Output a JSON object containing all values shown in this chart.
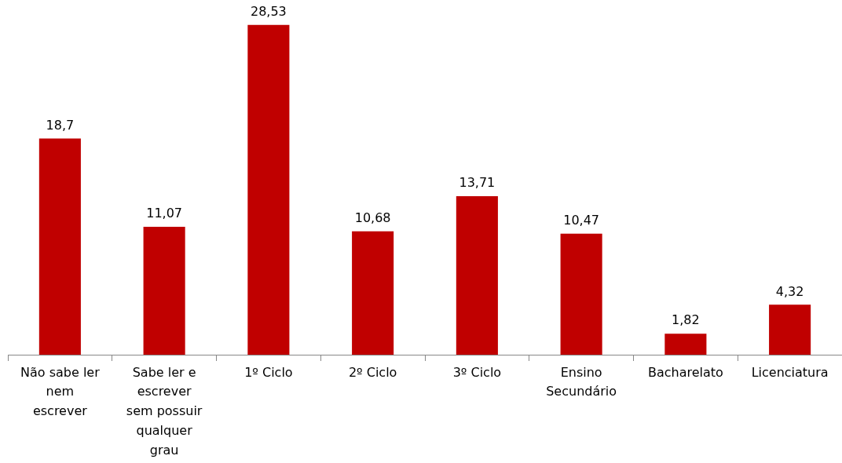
{
  "chart_data": {
    "type": "bar",
    "categories": [
      "Não sabe ler nem escrever",
      "Sabe ler e escrever sem possuir qualquer grau",
      "1º Ciclo",
      "2º Ciclo",
      "3º Ciclo",
      "Ensino Secundário",
      "Bacharelato",
      "Licenciatura"
    ],
    "values": [
      18.7,
      11.07,
      28.53,
      10.68,
      13.71,
      10.47,
      1.82,
      4.32
    ],
    "value_labels": [
      "18,7",
      "11,07",
      "28,53",
      "10,68",
      "13,71",
      "10,47",
      "1,82",
      "4,32"
    ],
    "color": "#c00000",
    "grid": false,
    "legend": false
  }
}
